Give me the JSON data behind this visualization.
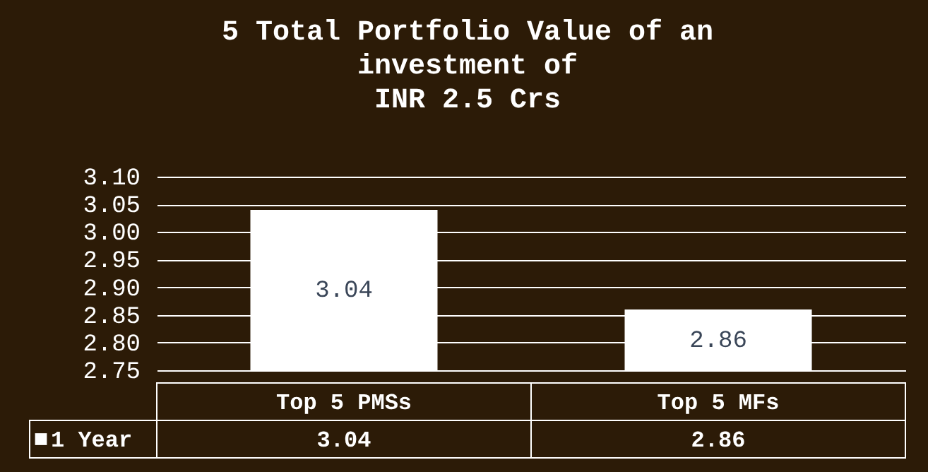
{
  "chart_data": {
    "type": "bar",
    "title": "5 Total Portfolio Value of an\ninvestment of\nINR 2.5 Crs",
    "categories": [
      "Top 5 PMSs",
      "Top 5 MFs"
    ],
    "series": [
      {
        "name": "1 Year",
        "color": "#ffffff",
        "values": [
          3.04,
          2.86
        ],
        "value_labels": [
          "3.04",
          "2.86"
        ]
      }
    ],
    "ylim": [
      2.75,
      3.1
    ],
    "yticks": [
      {
        "value": 2.75,
        "label": "2.75"
      },
      {
        "value": 2.8,
        "label": "2.80"
      },
      {
        "value": 2.85,
        "label": "2.85"
      },
      {
        "value": 2.9,
        "label": "2.90"
      },
      {
        "value": 2.95,
        "label": "2.95"
      },
      {
        "value": 3.0,
        "label": "3.00"
      },
      {
        "value": 3.05,
        "label": "3.05"
      },
      {
        "value": 3.1,
        "label": "3.10"
      }
    ],
    "annotations": [
      "3.04",
      "2.86"
    ],
    "grid": "y",
    "legend": "bottom left"
  }
}
